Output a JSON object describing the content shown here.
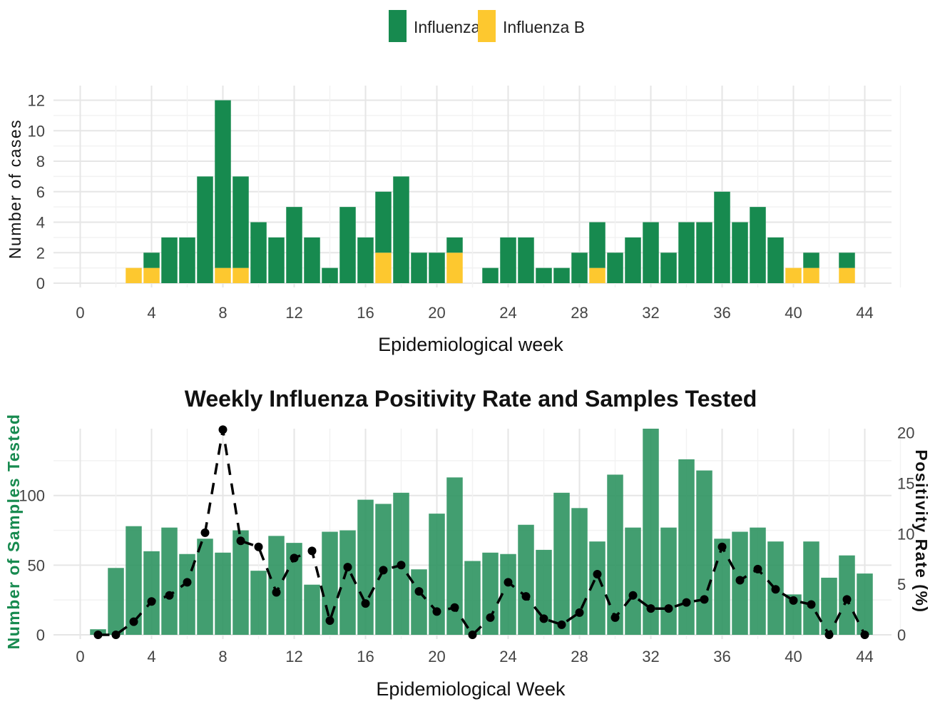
{
  "legend": {
    "items": [
      {
        "label": "Influenza A",
        "color": "#178a4f"
      },
      {
        "label": "Influenza B",
        "color": "#fdc82f"
      }
    ]
  },
  "chart_data": [
    {
      "type": "bar",
      "stacked": true,
      "title": "",
      "xlabel": "Epidemiological week",
      "ylabel": "Number of cases",
      "xlim": [
        -1.5,
        45.5
      ],
      "ylim": [
        0,
        12.4
      ],
      "x_ticks": [
        0,
        4,
        8,
        12,
        16,
        20,
        24,
        28,
        32,
        36,
        40,
        44
      ],
      "y_ticks": [
        0,
        2,
        4,
        6,
        8,
        10,
        12
      ],
      "grid": true,
      "legend_position": "top",
      "x": [
        3,
        4,
        5,
        6,
        7,
        8,
        9,
        10,
        11,
        12,
        13,
        14,
        15,
        16,
        17,
        18,
        19,
        20,
        21,
        23,
        24,
        25,
        26,
        27,
        28,
        29,
        30,
        31,
        32,
        33,
        34,
        35,
        36,
        37,
        38,
        39,
        40,
        41,
        43
      ],
      "series": [
        {
          "name": "Influenza B",
          "color": "#fdc82f",
          "values": [
            1,
            1,
            0,
            0,
            0,
            1,
            1,
            0,
            0,
            0,
            0,
            0,
            0,
            0,
            2,
            0,
            0,
            0,
            2,
            0,
            0,
            0,
            0,
            0,
            0,
            1,
            0,
            0,
            0,
            0,
            0,
            0,
            0,
            0,
            0,
            0,
            1,
            1,
            1
          ]
        },
        {
          "name": "Influenza A",
          "color": "#178a4f",
          "values": [
            0,
            1,
            3,
            3,
            7,
            11,
            6,
            4,
            3,
            5,
            3,
            1,
            5,
            3,
            4,
            7,
            2,
            2,
            1,
            1,
            3,
            3,
            1,
            1,
            2,
            3,
            2,
            3,
            4,
            2,
            4,
            4,
            6,
            4,
            5,
            3,
            0,
            1,
            1
          ]
        }
      ]
    },
    {
      "type": "bar+line",
      "title": "Weekly Influenza Positivity Rate and Samples Tested",
      "xlabel": "Epidemiological Week",
      "ylabel": "Number of Samples Tested",
      "ylabel_right": "Positivity Rate (%)",
      "xlim": [
        -1.5,
        45.5
      ],
      "ylim": [
        0,
        148
      ],
      "ylim_right": [
        0,
        20.4
      ],
      "x_ticks": [
        0,
        4,
        8,
        12,
        16,
        20,
        24,
        28,
        32,
        36,
        40,
        44
      ],
      "y_ticks": [
        0,
        50,
        100
      ],
      "y_ticks_right": [
        0,
        5,
        10,
        15,
        20
      ],
      "grid": true,
      "bar_color": "#2e9460",
      "line_color": "#000000",
      "x": [
        1,
        2,
        3,
        4,
        5,
        6,
        7,
        8,
        9,
        10,
        11,
        12,
        13,
        14,
        15,
        16,
        17,
        18,
        19,
        20,
        21,
        22,
        23,
        24,
        25,
        26,
        27,
        28,
        29,
        30,
        31,
        32,
        33,
        34,
        35,
        36,
        37,
        38,
        39,
        40,
        41,
        42,
        43,
        44
      ],
      "samples_tested": [
        4,
        48,
        78,
        60,
        77,
        58,
        69,
        59,
        75,
        46,
        71,
        66,
        36,
        74,
        75,
        97,
        94,
        102,
        47,
        87,
        113,
        53,
        59,
        58,
        79,
        61,
        102,
        91,
        67,
        115,
        77,
        148,
        77,
        126,
        118,
        69,
        74,
        77,
        67,
        29,
        67,
        41,
        57,
        44
      ],
      "positivity_rate": [
        0,
        0,
        1.3,
        3.3,
        3.9,
        5.2,
        10.1,
        20.3,
        9.3,
        8.7,
        4.2,
        7.6,
        8.3,
        1.4,
        6.7,
        3.1,
        6.4,
        6.9,
        4.3,
        2.3,
        2.7,
        0,
        1.7,
        5.2,
        3.8,
        1.6,
        1,
        2.2,
        6,
        1.7,
        3.9,
        2.6,
        2.6,
        3.2,
        3.5,
        8.7,
        5.4,
        6.5,
        4.5,
        3.4,
        3,
        0,
        3.5,
        0
      ]
    }
  ]
}
